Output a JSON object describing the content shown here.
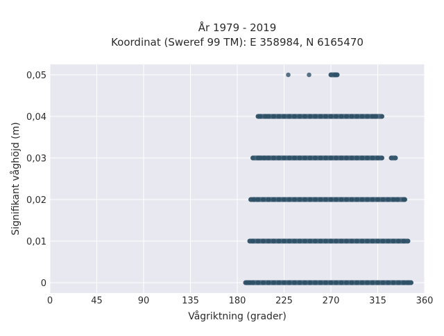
{
  "chart_data": {
    "type": "scatter",
    "title": "År 1979 - 2019",
    "subtitle": "Koordinat (Sweref 99 TM): E 358984, N 6165470",
    "xlabel": "Vågriktning (grader)",
    "ylabel": "Signifikant våghöjd (m)",
    "xlim": [
      0,
      360
    ],
    "ylim": [
      -0.0025,
      0.0525
    ],
    "x_ticks": [
      0,
      45,
      90,
      135,
      180,
      225,
      270,
      315,
      360
    ],
    "x_tick_labels": [
      "0",
      "45",
      "90",
      "135",
      "180",
      "225",
      "270",
      "315",
      "360"
    ],
    "y_ticks": [
      0,
      0.01,
      0.02,
      0.03,
      0.04,
      0.05
    ],
    "y_tick_labels": [
      "0",
      "0,01",
      "0,02",
      "0,03",
      "0,04",
      "0,05"
    ],
    "grid": true,
    "point_color": "#2f5168",
    "plot_background": "#e8e8f0",
    "series": [
      {
        "points": [
          [
            188,
            0
          ],
          [
            190,
            0
          ],
          [
            192,
            0
          ],
          [
            195,
            0
          ],
          [
            200,
            0
          ],
          [
            205,
            0
          ],
          [
            210,
            0
          ],
          [
            215,
            0
          ],
          [
            220,
            0
          ],
          [
            225,
            0
          ],
          [
            230,
            0
          ],
          [
            235,
            0
          ],
          [
            240,
            0
          ],
          [
            245,
            0
          ],
          [
            250,
            0
          ],
          [
            255,
            0
          ],
          [
            260,
            0
          ],
          [
            265,
            0
          ],
          [
            270,
            0
          ],
          [
            275,
            0
          ],
          [
            280,
            0
          ],
          [
            285,
            0
          ],
          [
            290,
            0
          ],
          [
            295,
            0
          ],
          [
            300,
            0
          ],
          [
            305,
            0
          ],
          [
            310,
            0
          ],
          [
            315,
            0
          ],
          [
            320,
            0
          ],
          [
            325,
            0
          ],
          [
            330,
            0
          ],
          [
            335,
            0
          ],
          [
            340,
            0
          ],
          [
            344,
            0
          ],
          [
            347,
            0
          ],
          [
            192,
            0.01
          ],
          [
            195,
            0.01
          ],
          [
            200,
            0.01
          ],
          [
            205,
            0.01
          ],
          [
            210,
            0.01
          ],
          [
            215,
            0.01
          ],
          [
            220,
            0.01
          ],
          [
            225,
            0.01
          ],
          [
            230,
            0.01
          ],
          [
            235,
            0.01
          ],
          [
            240,
            0.01
          ],
          [
            245,
            0.01
          ],
          [
            250,
            0.01
          ],
          [
            255,
            0.01
          ],
          [
            260,
            0.01
          ],
          [
            265,
            0.01
          ],
          [
            270,
            0.01
          ],
          [
            275,
            0.01
          ],
          [
            280,
            0.01
          ],
          [
            285,
            0.01
          ],
          [
            290,
            0.01
          ],
          [
            295,
            0.01
          ],
          [
            300,
            0.01
          ],
          [
            305,
            0.01
          ],
          [
            310,
            0.01
          ],
          [
            315,
            0.01
          ],
          [
            320,
            0.01
          ],
          [
            325,
            0.01
          ],
          [
            330,
            0.01
          ],
          [
            335,
            0.01
          ],
          [
            340,
            0.01
          ],
          [
            344,
            0.01
          ],
          [
            193,
            0.02
          ],
          [
            196,
            0.02
          ],
          [
            200,
            0.02
          ],
          [
            205,
            0.02
          ],
          [
            210,
            0.02
          ],
          [
            215,
            0.02
          ],
          [
            220,
            0.02
          ],
          [
            225,
            0.02
          ],
          [
            230,
            0.02
          ],
          [
            235,
            0.02
          ],
          [
            240,
            0.02
          ],
          [
            245,
            0.02
          ],
          [
            250,
            0.02
          ],
          [
            255,
            0.02
          ],
          [
            260,
            0.02
          ],
          [
            265,
            0.02
          ],
          [
            270,
            0.02
          ],
          [
            275,
            0.02
          ],
          [
            280,
            0.02
          ],
          [
            285,
            0.02
          ],
          [
            290,
            0.02
          ],
          [
            295,
            0.02
          ],
          [
            300,
            0.02
          ],
          [
            305,
            0.02
          ],
          [
            310,
            0.02
          ],
          [
            315,
            0.02
          ],
          [
            320,
            0.02
          ],
          [
            325,
            0.02
          ],
          [
            330,
            0.02
          ],
          [
            334,
            0.02
          ],
          [
            340,
            0.02
          ],
          [
            341,
            0.02
          ],
          [
            195,
            0.03
          ],
          [
            200,
            0.03
          ],
          [
            202,
            0.03
          ],
          [
            206,
            0.03
          ],
          [
            210,
            0.03
          ],
          [
            215,
            0.03
          ],
          [
            220,
            0.03
          ],
          [
            225,
            0.03
          ],
          [
            230,
            0.03
          ],
          [
            235,
            0.03
          ],
          [
            240,
            0.03
          ],
          [
            245,
            0.03
          ],
          [
            250,
            0.03
          ],
          [
            255,
            0.03
          ],
          [
            260,
            0.03
          ],
          [
            265,
            0.03
          ],
          [
            270,
            0.03
          ],
          [
            275,
            0.03
          ],
          [
            280,
            0.03
          ],
          [
            285,
            0.03
          ],
          [
            290,
            0.03
          ],
          [
            295,
            0.03
          ],
          [
            300,
            0.03
          ],
          [
            305,
            0.03
          ],
          [
            310,
            0.03
          ],
          [
            315,
            0.03
          ],
          [
            319,
            0.03
          ],
          [
            328,
            0.03
          ],
          [
            332,
            0.03
          ],
          [
            200,
            0.04
          ],
          [
            202,
            0.04
          ],
          [
            207,
            0.04
          ],
          [
            210,
            0.04
          ],
          [
            215,
            0.04
          ],
          [
            220,
            0.04
          ],
          [
            225,
            0.04
          ],
          [
            230,
            0.04
          ],
          [
            235,
            0.04
          ],
          [
            240,
            0.04
          ],
          [
            245,
            0.04
          ],
          [
            250,
            0.04
          ],
          [
            255,
            0.04
          ],
          [
            260,
            0.04
          ],
          [
            265,
            0.04
          ],
          [
            270,
            0.04
          ],
          [
            275,
            0.04
          ],
          [
            280,
            0.04
          ],
          [
            285,
            0.04
          ],
          [
            290,
            0.04
          ],
          [
            295,
            0.04
          ],
          [
            300,
            0.04
          ],
          [
            305,
            0.04
          ],
          [
            310,
            0.04
          ],
          [
            313,
            0.04
          ],
          [
            319,
            0.04
          ],
          [
            229,
            0.05
          ],
          [
            249,
            0.05
          ],
          [
            270,
            0.05
          ],
          [
            274,
            0.05
          ],
          [
            276,
            0.05
          ]
        ]
      }
    ]
  }
}
